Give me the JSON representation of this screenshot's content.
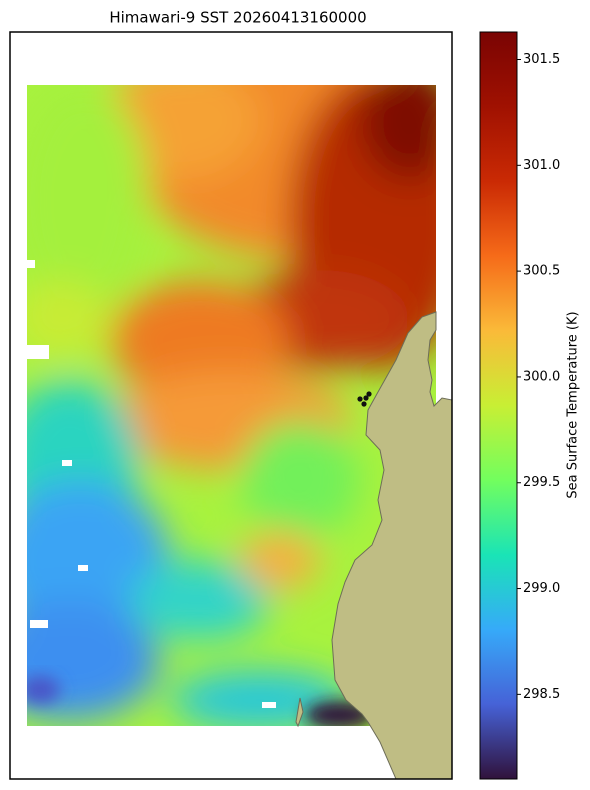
{
  "chart_data": {
    "type": "map",
    "title": "Himawari-9 SST 20260413160000",
    "colorbar_label": "Sea Surface Temperature (K)",
    "colormap": "turbo",
    "ylim": [
      298.1,
      301.63
    ],
    "yticks": [
      298.5,
      {
        "value": 299,
        "label": "299.0"
      },
      299.5,
      {
        "value": 300,
        "label": "300.0"
      },
      300.5,
      {
        "value": 301,
        "label": "301.0"
      },
      301.5
    ]
  }
}
